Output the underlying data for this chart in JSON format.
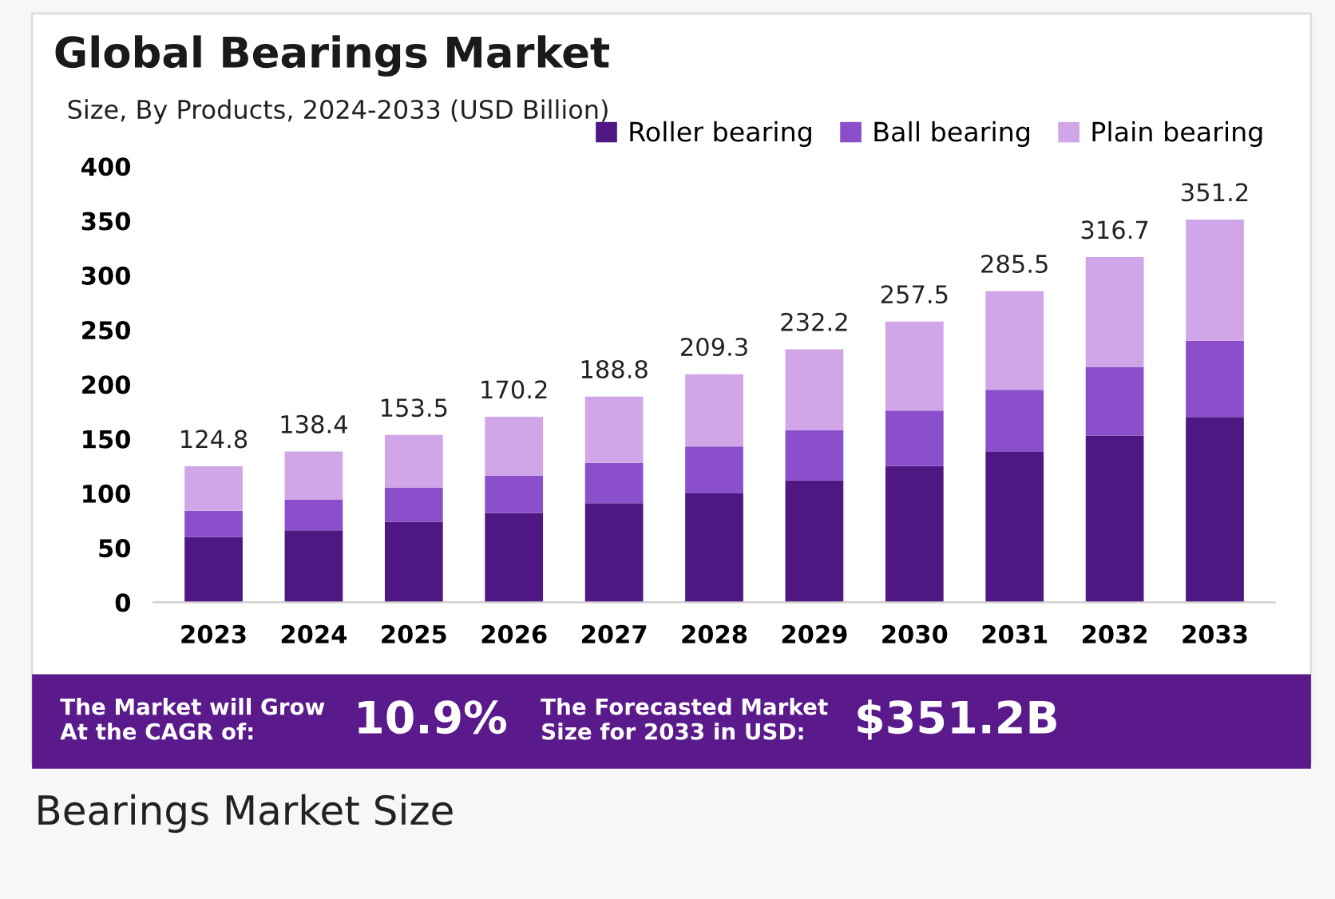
{
  "chart_data": {
    "type": "bar",
    "title": "Global Bearings Market",
    "subtitle": "Size, By Products, 2024-2033 (USD Billion)",
    "categories": [
      "2023",
      "2024",
      "2025",
      "2026",
      "2027",
      "2028",
      "2029",
      "2030",
      "2031",
      "2032",
      "2033"
    ],
    "stacked": true,
    "series": [
      {
        "name": "Roller bearing",
        "color": "#4e1782",
        "values": [
          60,
          66,
          74,
          82,
          91,
          100,
          112,
          125,
          138,
          153,
          170
        ]
      },
      {
        "name": "Ball bearing",
        "color": "#8b4fcb",
        "values": [
          24,
          28,
          31,
          34,
          37,
          43,
          46,
          51,
          57,
          63,
          70
        ]
      },
      {
        "name": "Plain bearing",
        "color": "#d0a6e8",
        "values": [
          40.8,
          44.4,
          48.5,
          54.2,
          60.8,
          66.3,
          74.2,
          81.5,
          90.5,
          100.7,
          111.2
        ]
      }
    ],
    "totals": [
      "124.8",
      "138.4",
      "153.5",
      "170.2",
      "188.8",
      "209.3",
      "232.2",
      "257.5",
      "285.5",
      "316.7",
      "351.2"
    ],
    "ylim": [
      0,
      400
    ],
    "yticks": [
      0,
      50,
      100,
      150,
      200,
      250,
      300,
      350,
      400
    ],
    "grid": false,
    "legend": "top right",
    "annotations": [
      "The Market will Grow\nAt the CAGR of:",
      "10.9%",
      "The Forecasted Market\nSize for 2033 in USD:",
      "$351.2B",
      "Bearings Market Size"
    ]
  }
}
